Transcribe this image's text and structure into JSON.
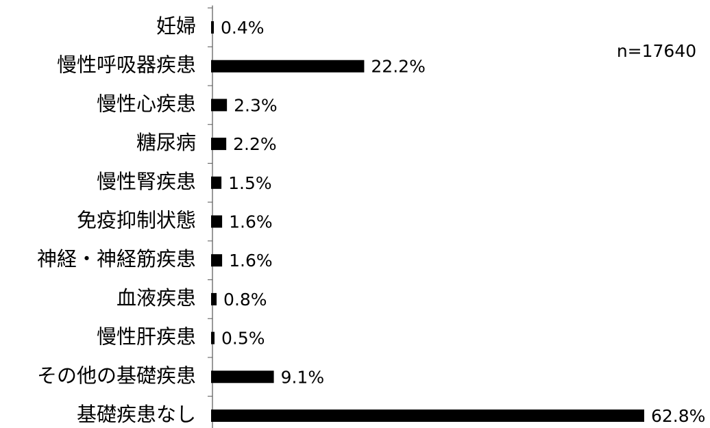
{
  "chart_data": {
    "type": "barh",
    "annotation": "n=17640",
    "categories": [
      "妊婦",
      "慢性呼吸器疾患",
      "慢性心疾患",
      "糖尿病",
      "慢性腎疾患",
      "免疫抑制状態",
      "神経・神経筋疾患",
      "血液疾患",
      "慢性肝疾患",
      "その他の基礎疾患",
      "基礎疾患なし"
    ],
    "values": [
      0.4,
      22.2,
      2.3,
      2.2,
      1.5,
      1.6,
      1.6,
      0.8,
      0.5,
      9.1,
      62.8
    ],
    "value_labels": [
      "0.4%",
      "22.2%",
      "2.3%",
      "2.2%",
      "1.5%",
      "1.6%",
      "1.6%",
      "0.8%",
      "0.5%",
      "9.1%",
      "62.8%"
    ],
    "color": "#000000",
    "xlim": [
      0,
      62.8
    ]
  }
}
